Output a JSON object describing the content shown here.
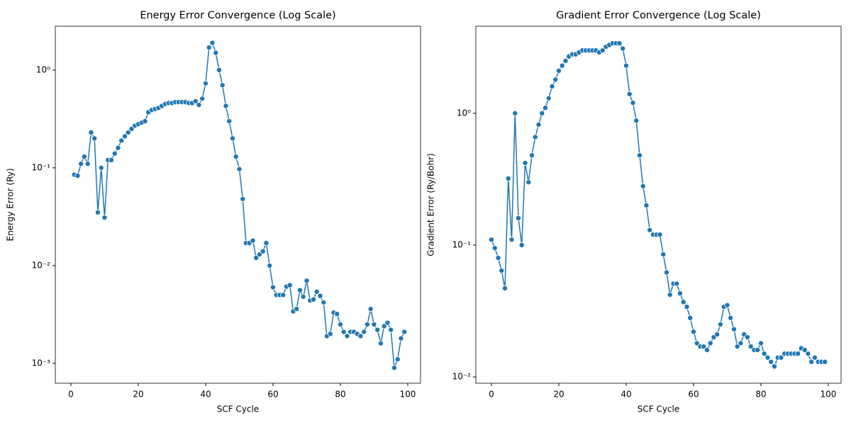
{
  "chart_data": [
    {
      "type": "line",
      "title": "Energy Error Convergence (Log Scale)",
      "xlabel": "SCF Cycle",
      "ylabel": "Energy Error (Ry)",
      "yscale": "log",
      "marker": "o",
      "color": "#1f77b4",
      "xlim": [
        -4.63,
        103.8
      ],
      "xticks": [
        0,
        20,
        40,
        60,
        80,
        100
      ],
      "ylim": [
        0.000626,
        2.81
      ],
      "yticks": [
        {
          "value": 0.001,
          "label": "10⁻³"
        },
        {
          "value": 0.01,
          "label": "10⁻²"
        },
        {
          "value": 0.1,
          "label": "10⁻¹"
        },
        {
          "value": 1,
          "label": "10⁰"
        }
      ],
      "x": [
        1,
        2,
        3,
        4,
        5,
        6,
        7,
        8,
        9,
        10,
        11,
        12,
        13,
        14,
        15,
        16,
        17,
        18,
        19,
        20,
        21,
        22,
        23,
        24,
        25,
        26,
        27,
        28,
        29,
        30,
        31,
        32,
        33,
        34,
        35,
        36,
        37,
        38,
        39,
        40,
        41,
        42,
        43,
        44,
        45,
        46,
        47,
        48,
        49,
        50,
        51,
        52,
        53,
        54,
        55,
        56,
        57,
        58,
        59,
        60,
        61,
        62,
        63,
        64,
        65,
        66,
        67,
        68,
        69,
        70,
        71,
        72,
        73,
        74,
        75,
        76,
        77,
        78,
        79,
        80,
        81,
        82,
        83,
        84,
        85,
        86,
        87,
        88,
        89,
        90,
        91,
        92,
        93,
        94,
        95,
        96,
        97,
        98,
        99
      ],
      "values": [
        0.085,
        0.083,
        0.11,
        0.13,
        0.11,
        0.23,
        0.2,
        0.035,
        0.1,
        0.031,
        0.12,
        0.12,
        0.14,
        0.16,
        0.19,
        0.21,
        0.23,
        0.25,
        0.27,
        0.28,
        0.29,
        0.3,
        0.37,
        0.39,
        0.4,
        0.41,
        0.43,
        0.45,
        0.46,
        0.46,
        0.47,
        0.47,
        0.47,
        0.47,
        0.46,
        0.46,
        0.48,
        0.44,
        0.51,
        0.73,
        1.7,
        1.9,
        1.5,
        1.0,
        0.7,
        0.43,
        0.3,
        0.2,
        0.13,
        0.097,
        0.048,
        0.017,
        0.017,
        0.018,
        0.012,
        0.013,
        0.014,
        0.017,
        0.01,
        0.006,
        0.005,
        0.005,
        0.005,
        0.0061,
        0.0063,
        0.0034,
        0.0036,
        0.0056,
        0.0048,
        0.007,
        0.0044,
        0.0045,
        0.0054,
        0.0049,
        0.0042,
        0.0019,
        0.002,
        0.0033,
        0.0032,
        0.0025,
        0.0021,
        0.0019,
        0.0021,
        0.0021,
        0.002,
        0.0019,
        0.0021,
        0.0025,
        0.0036,
        0.0025,
        0.0022,
        0.0016,
        0.0024,
        0.0026,
        0.0022,
        0.0009,
        0.0011,
        0.0018,
        0.0021
      ]
    },
    {
      "type": "line",
      "title": "Gradient Error Convergence (Log Scale)",
      "xlabel": "SCF Cycle",
      "ylabel": "Gradient Error (Ry/Bohr)",
      "yscale": "log",
      "marker": "o",
      "color": "#1f77b4",
      "xlim": [
        -4.63,
        103.8
      ],
      "xticks": [
        0,
        20,
        40,
        60,
        80,
        100
      ],
      "ylim": [
        0.00895,
        4.58
      ],
      "yticks": [
        {
          "value": 0.01,
          "label": "10⁻²"
        },
        {
          "value": 0.1,
          "label": "10⁻¹"
        },
        {
          "value": 1,
          "label": "10⁰"
        }
      ],
      "x": [
        0,
        1,
        2,
        3,
        4,
        5,
        6,
        7,
        8,
        9,
        10,
        11,
        12,
        13,
        14,
        15,
        16,
        17,
        18,
        19,
        20,
        21,
        22,
        23,
        24,
        25,
        26,
        27,
        28,
        29,
        30,
        31,
        32,
        33,
        34,
        35,
        36,
        37,
        38,
        39,
        40,
        41,
        42,
        43,
        44,
        45,
        46,
        47,
        48,
        49,
        50,
        51,
        52,
        53,
        54,
        55,
        56,
        57,
        58,
        59,
        60,
        61,
        62,
        63,
        64,
        65,
        66,
        67,
        68,
        69,
        70,
        71,
        72,
        73,
        74,
        75,
        76,
        77,
        78,
        79,
        80,
        81,
        82,
        83,
        84,
        85,
        86,
        87,
        88,
        89,
        90,
        91,
        92,
        93,
        94,
        95,
        96,
        97,
        98,
        99
      ],
      "values": [
        0.11,
        0.095,
        0.08,
        0.064,
        0.047,
        0.32,
        0.11,
        1.0,
        0.16,
        0.1,
        0.42,
        0.3,
        0.48,
        0.66,
        0.82,
        1.0,
        1.1,
        1.3,
        1.6,
        1.8,
        2.1,
        2.3,
        2.5,
        2.7,
        2.8,
        2.8,
        2.9,
        3.0,
        3.0,
        3.0,
        3.0,
        3.0,
        2.9,
        3.0,
        3.2,
        3.3,
        3.4,
        3.4,
        3.4,
        3.1,
        2.3,
        1.4,
        1.2,
        0.88,
        0.48,
        0.28,
        0.2,
        0.13,
        0.12,
        0.12,
        0.12,
        0.085,
        0.062,
        0.042,
        0.051,
        0.051,
        0.043,
        0.037,
        0.034,
        0.028,
        0.022,
        0.018,
        0.017,
        0.017,
        0.016,
        0.018,
        0.02,
        0.021,
        0.025,
        0.034,
        0.035,
        0.028,
        0.023,
        0.017,
        0.018,
        0.021,
        0.02,
        0.017,
        0.016,
        0.016,
        0.018,
        0.015,
        0.014,
        0.013,
        0.012,
        0.014,
        0.014,
        0.015,
        0.015,
        0.015,
        0.015,
        0.015,
        0.0165,
        0.016,
        0.015,
        0.013,
        0.014,
        0.013,
        0.013,
        0.013
      ]
    }
  ]
}
